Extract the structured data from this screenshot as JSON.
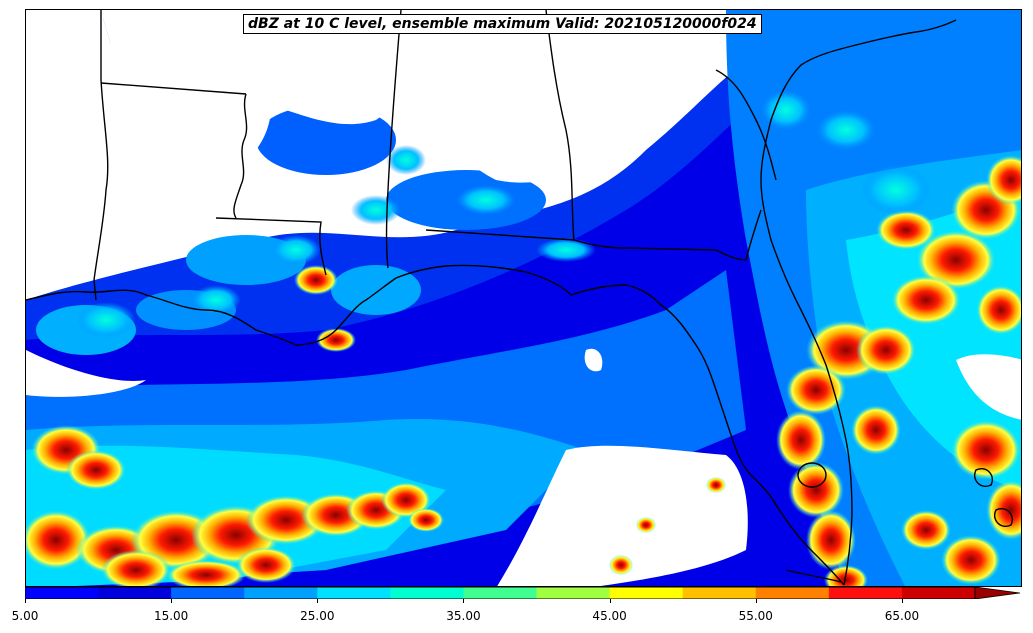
{
  "title": "dBZ at 10 C level, ensemble maximum Valid: 202105120000f024",
  "colorbar": {
    "min": 5.0,
    "max": 70.0,
    "step": 5.0,
    "extend": "max",
    "tick_labels": [
      "5.00",
      "15.00",
      "25.00",
      "35.00",
      "45.00",
      "55.00",
      "65.00"
    ],
    "colors": [
      "#0000ff",
      "#0000dd",
      "#0066ff",
      "#00a0ff",
      "#00e0ff",
      "#00ffd0",
      "#40ff90",
      "#a0ff40",
      "#ffff00",
      "#ffc000",
      "#ff8000",
      "#ff1010",
      "#cc0000",
      "#990000"
    ]
  }
}
